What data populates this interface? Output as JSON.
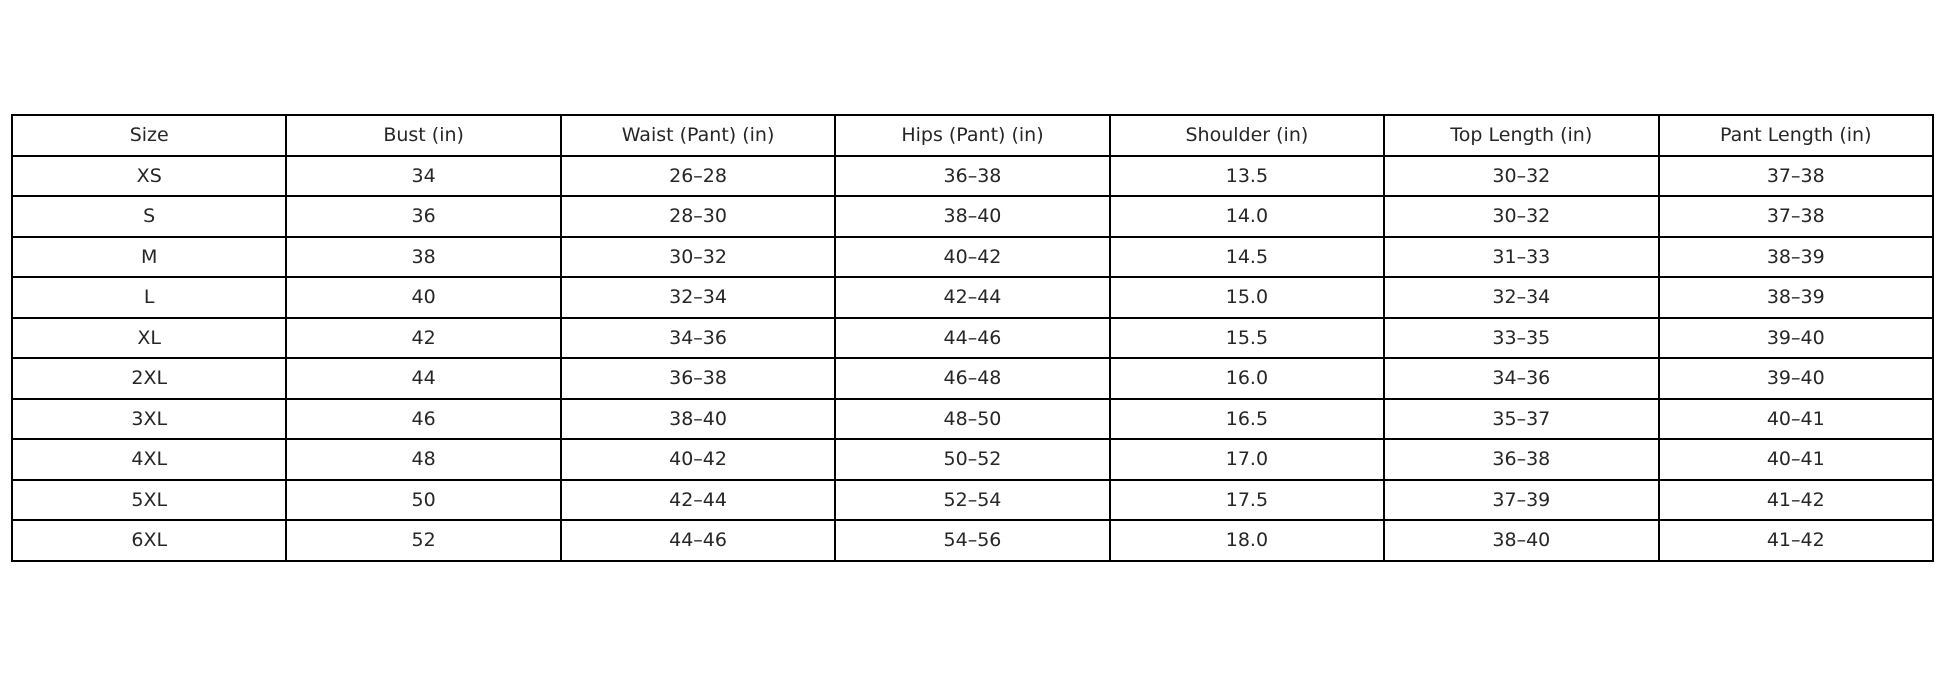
{
  "table": {
    "headers": [
      "Size",
      "Bust (in)",
      "Waist (Pant) (in)",
      "Hips (Pant) (in)",
      "Shoulder (in)",
      "Top Length (in)",
      "Pant Length (in)"
    ],
    "rows": [
      [
        "XS",
        "34",
        "26–28",
        "36–38",
        "13.5",
        "30–32",
        "37–38"
      ],
      [
        "S",
        "36",
        "28–30",
        "38–40",
        "14.0",
        "30–32",
        "37–38"
      ],
      [
        "M",
        "38",
        "30–32",
        "40–42",
        "14.5",
        "31–33",
        "38–39"
      ],
      [
        "L",
        "40",
        "32–34",
        "42–44",
        "15.0",
        "32–34",
        "38–39"
      ],
      [
        "XL",
        "42",
        "34–36",
        "44–46",
        "15.5",
        "33–35",
        "39–40"
      ],
      [
        "2XL",
        "44",
        "36–38",
        "46–48",
        "16.0",
        "34–36",
        "39–40"
      ],
      [
        "3XL",
        "46",
        "38–40",
        "48–50",
        "16.5",
        "35–37",
        "40–41"
      ],
      [
        "4XL",
        "48",
        "40–42",
        "50–52",
        "17.0",
        "36–38",
        "40–41"
      ],
      [
        "5XL",
        "50",
        "42–44",
        "52–54",
        "17.5",
        "37–39",
        "41–42"
      ],
      [
        "6XL",
        "52",
        "44–46",
        "54–56",
        "18.0",
        "38–40",
        "41–42"
      ]
    ]
  }
}
